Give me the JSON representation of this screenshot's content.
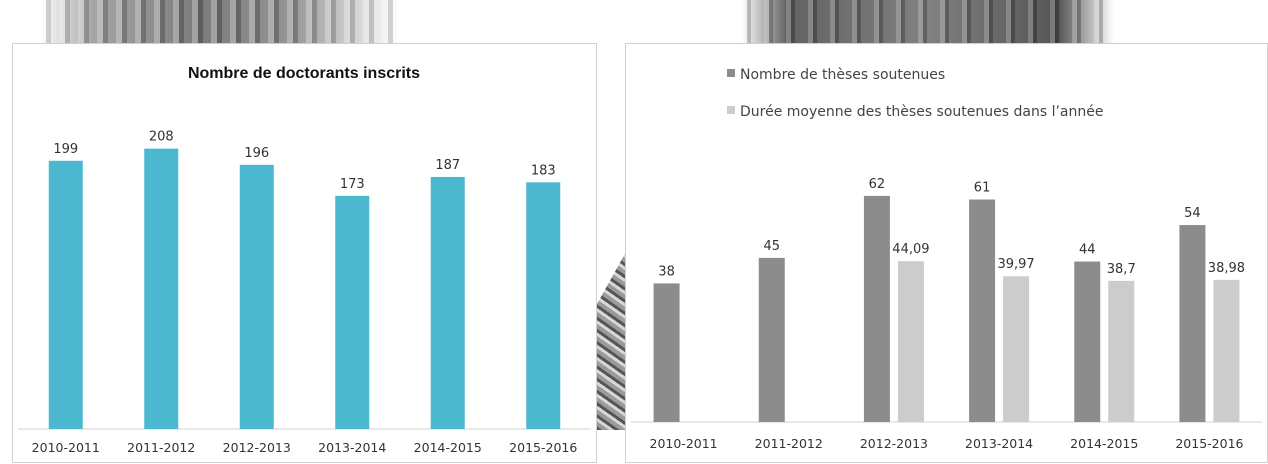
{
  "chart_data": [
    {
      "type": "bar",
      "title": "Nombre de doctorants inscrits",
      "categories": [
        "2010-2011",
        "2011-2012",
        "2012-2013",
        "2013-2014",
        "2014-2015",
        "2015-2016"
      ],
      "values": [
        199,
        208,
        196,
        173,
        187,
        183
      ],
      "value_labels": [
        "199",
        "208",
        "196",
        "173",
        "187",
        "183"
      ],
      "ylim": [
        0,
        230
      ],
      "grid": false,
      "colors": {
        "bar": "#4bb8cf"
      }
    },
    {
      "type": "bar",
      "title": "",
      "categories": [
        "2010-2011",
        "2011-2012",
        "2012-2013",
        "2013-2014",
        "2014-2015",
        "2015-2016"
      ],
      "series": [
        {
          "name": "Nombre de thèses soutenues",
          "values": [
            38,
            45,
            62,
            61,
            44,
            54
          ],
          "labels": [
            "38",
            "45",
            "62",
            "61",
            "44",
            "54"
          ],
          "color": "#8c8c8c"
        },
        {
          "name": "Durée moyenne des thèses soutenues dans l’année",
          "values": [
            null,
            null,
            44.09,
            39.97,
            38.7,
            38.98
          ],
          "labels": [
            "",
            "",
            "44,09",
            "39,97",
            "38,7",
            "38,98"
          ],
          "color": "#cccccc"
        }
      ],
      "ylim": [
        0,
        68
      ],
      "legend": "top-left",
      "grid": false
    }
  ]
}
